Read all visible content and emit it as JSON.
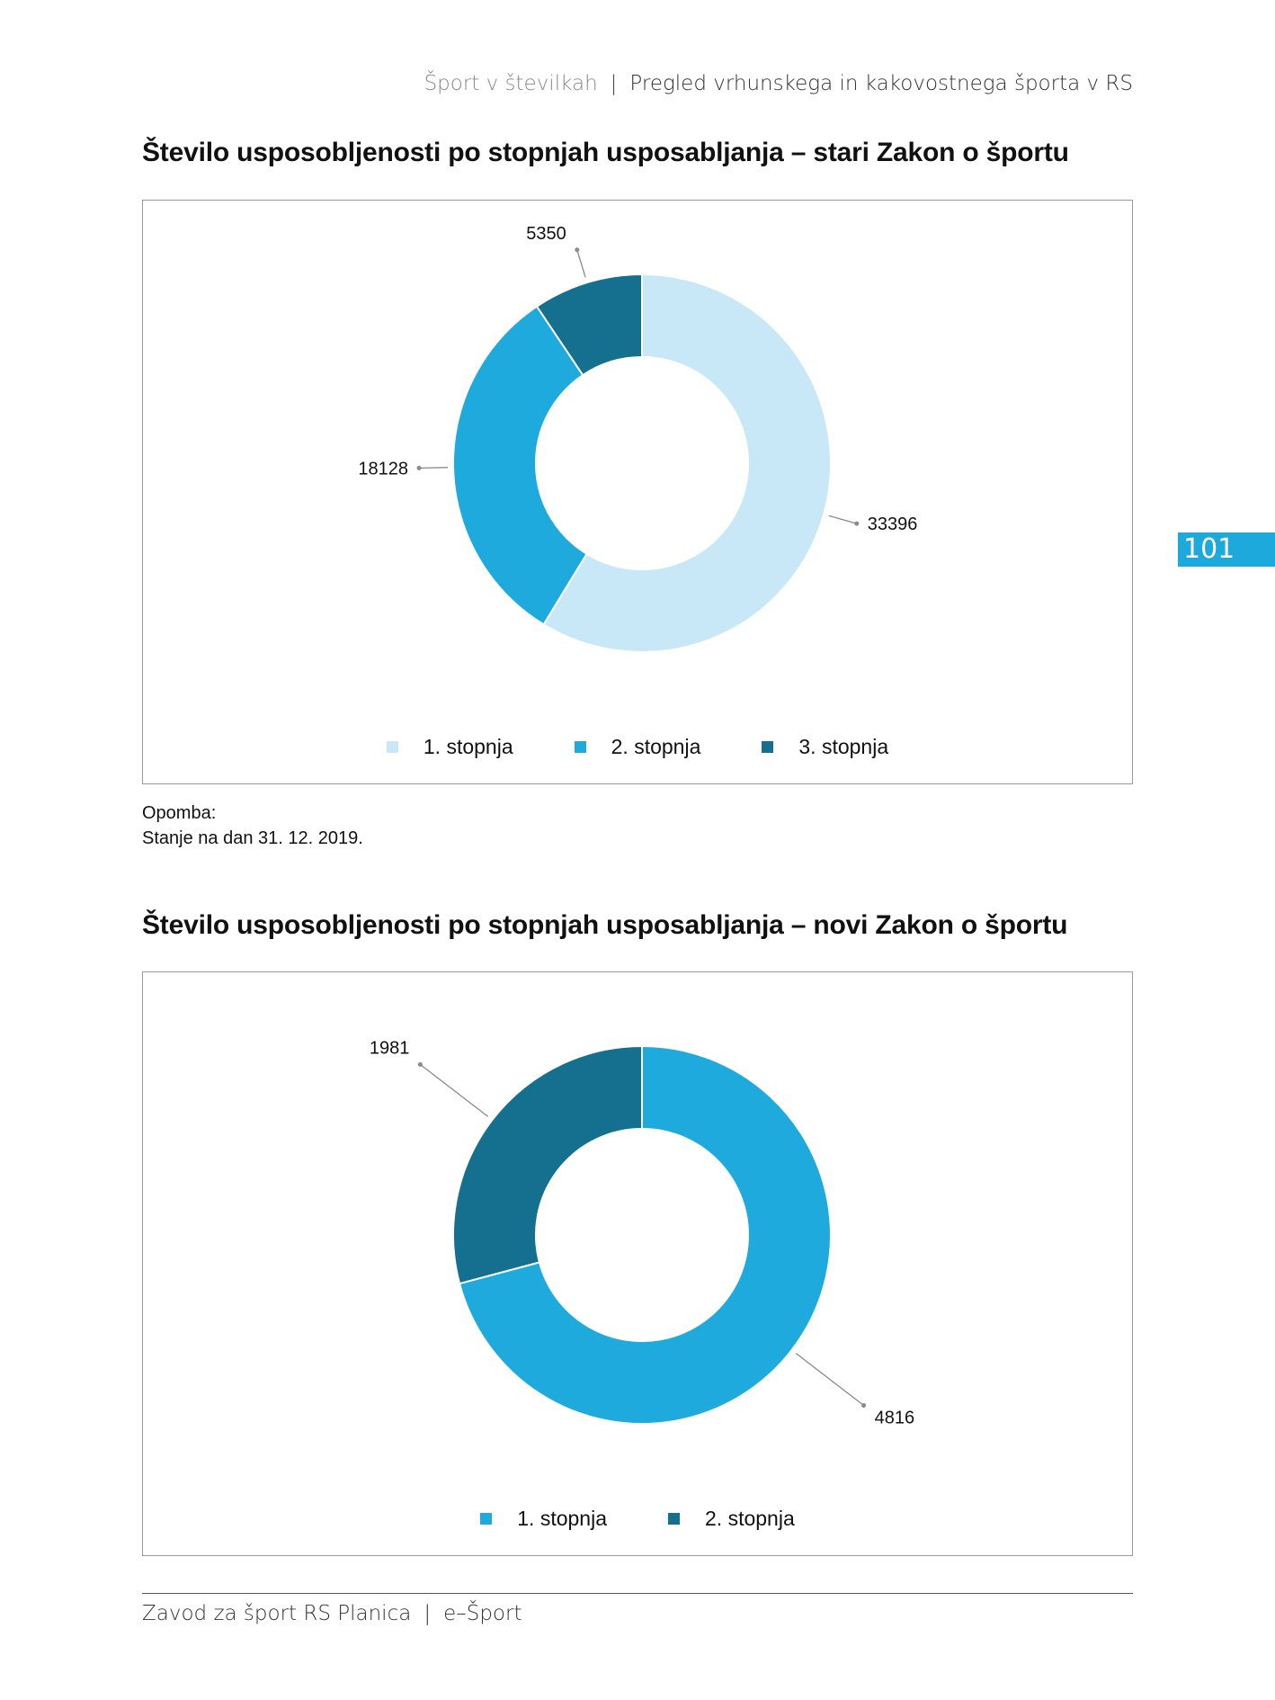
{
  "header": {
    "publication": "Šport v številkah",
    "section": "Pregled vrhunskega in kakovostnega športa v RS"
  },
  "page_number": "101",
  "chart_data": [
    {
      "type": "pie",
      "donut": true,
      "title": "Število usposobljenosti po stopnjah usposabljanja – stari Zakon o športu",
      "categories": [
        "1. stopnja",
        "2. stopnja",
        "3. stopnja"
      ],
      "values": [
        33396,
        18128,
        5350
      ],
      "colors": [
        "#c9e8f7",
        "#1eaadc",
        "#157090"
      ],
      "legend": "bottom"
    },
    {
      "type": "pie",
      "donut": true,
      "title": "Število usposobljenosti po stopnjah usposabljanja – novi Zakon o športu",
      "categories": [
        "1. stopnja",
        "2. stopnja"
      ],
      "values": [
        4816,
        1981
      ],
      "colors": [
        "#1eaadc",
        "#157090"
      ],
      "legend": "bottom"
    }
  ],
  "note": {
    "heading": "Opomba:",
    "text": "Stanje na dan 31. 12. 2019."
  },
  "footer": {
    "organization": "Zavod za šport RS Planica",
    "series": "e–Šport"
  }
}
